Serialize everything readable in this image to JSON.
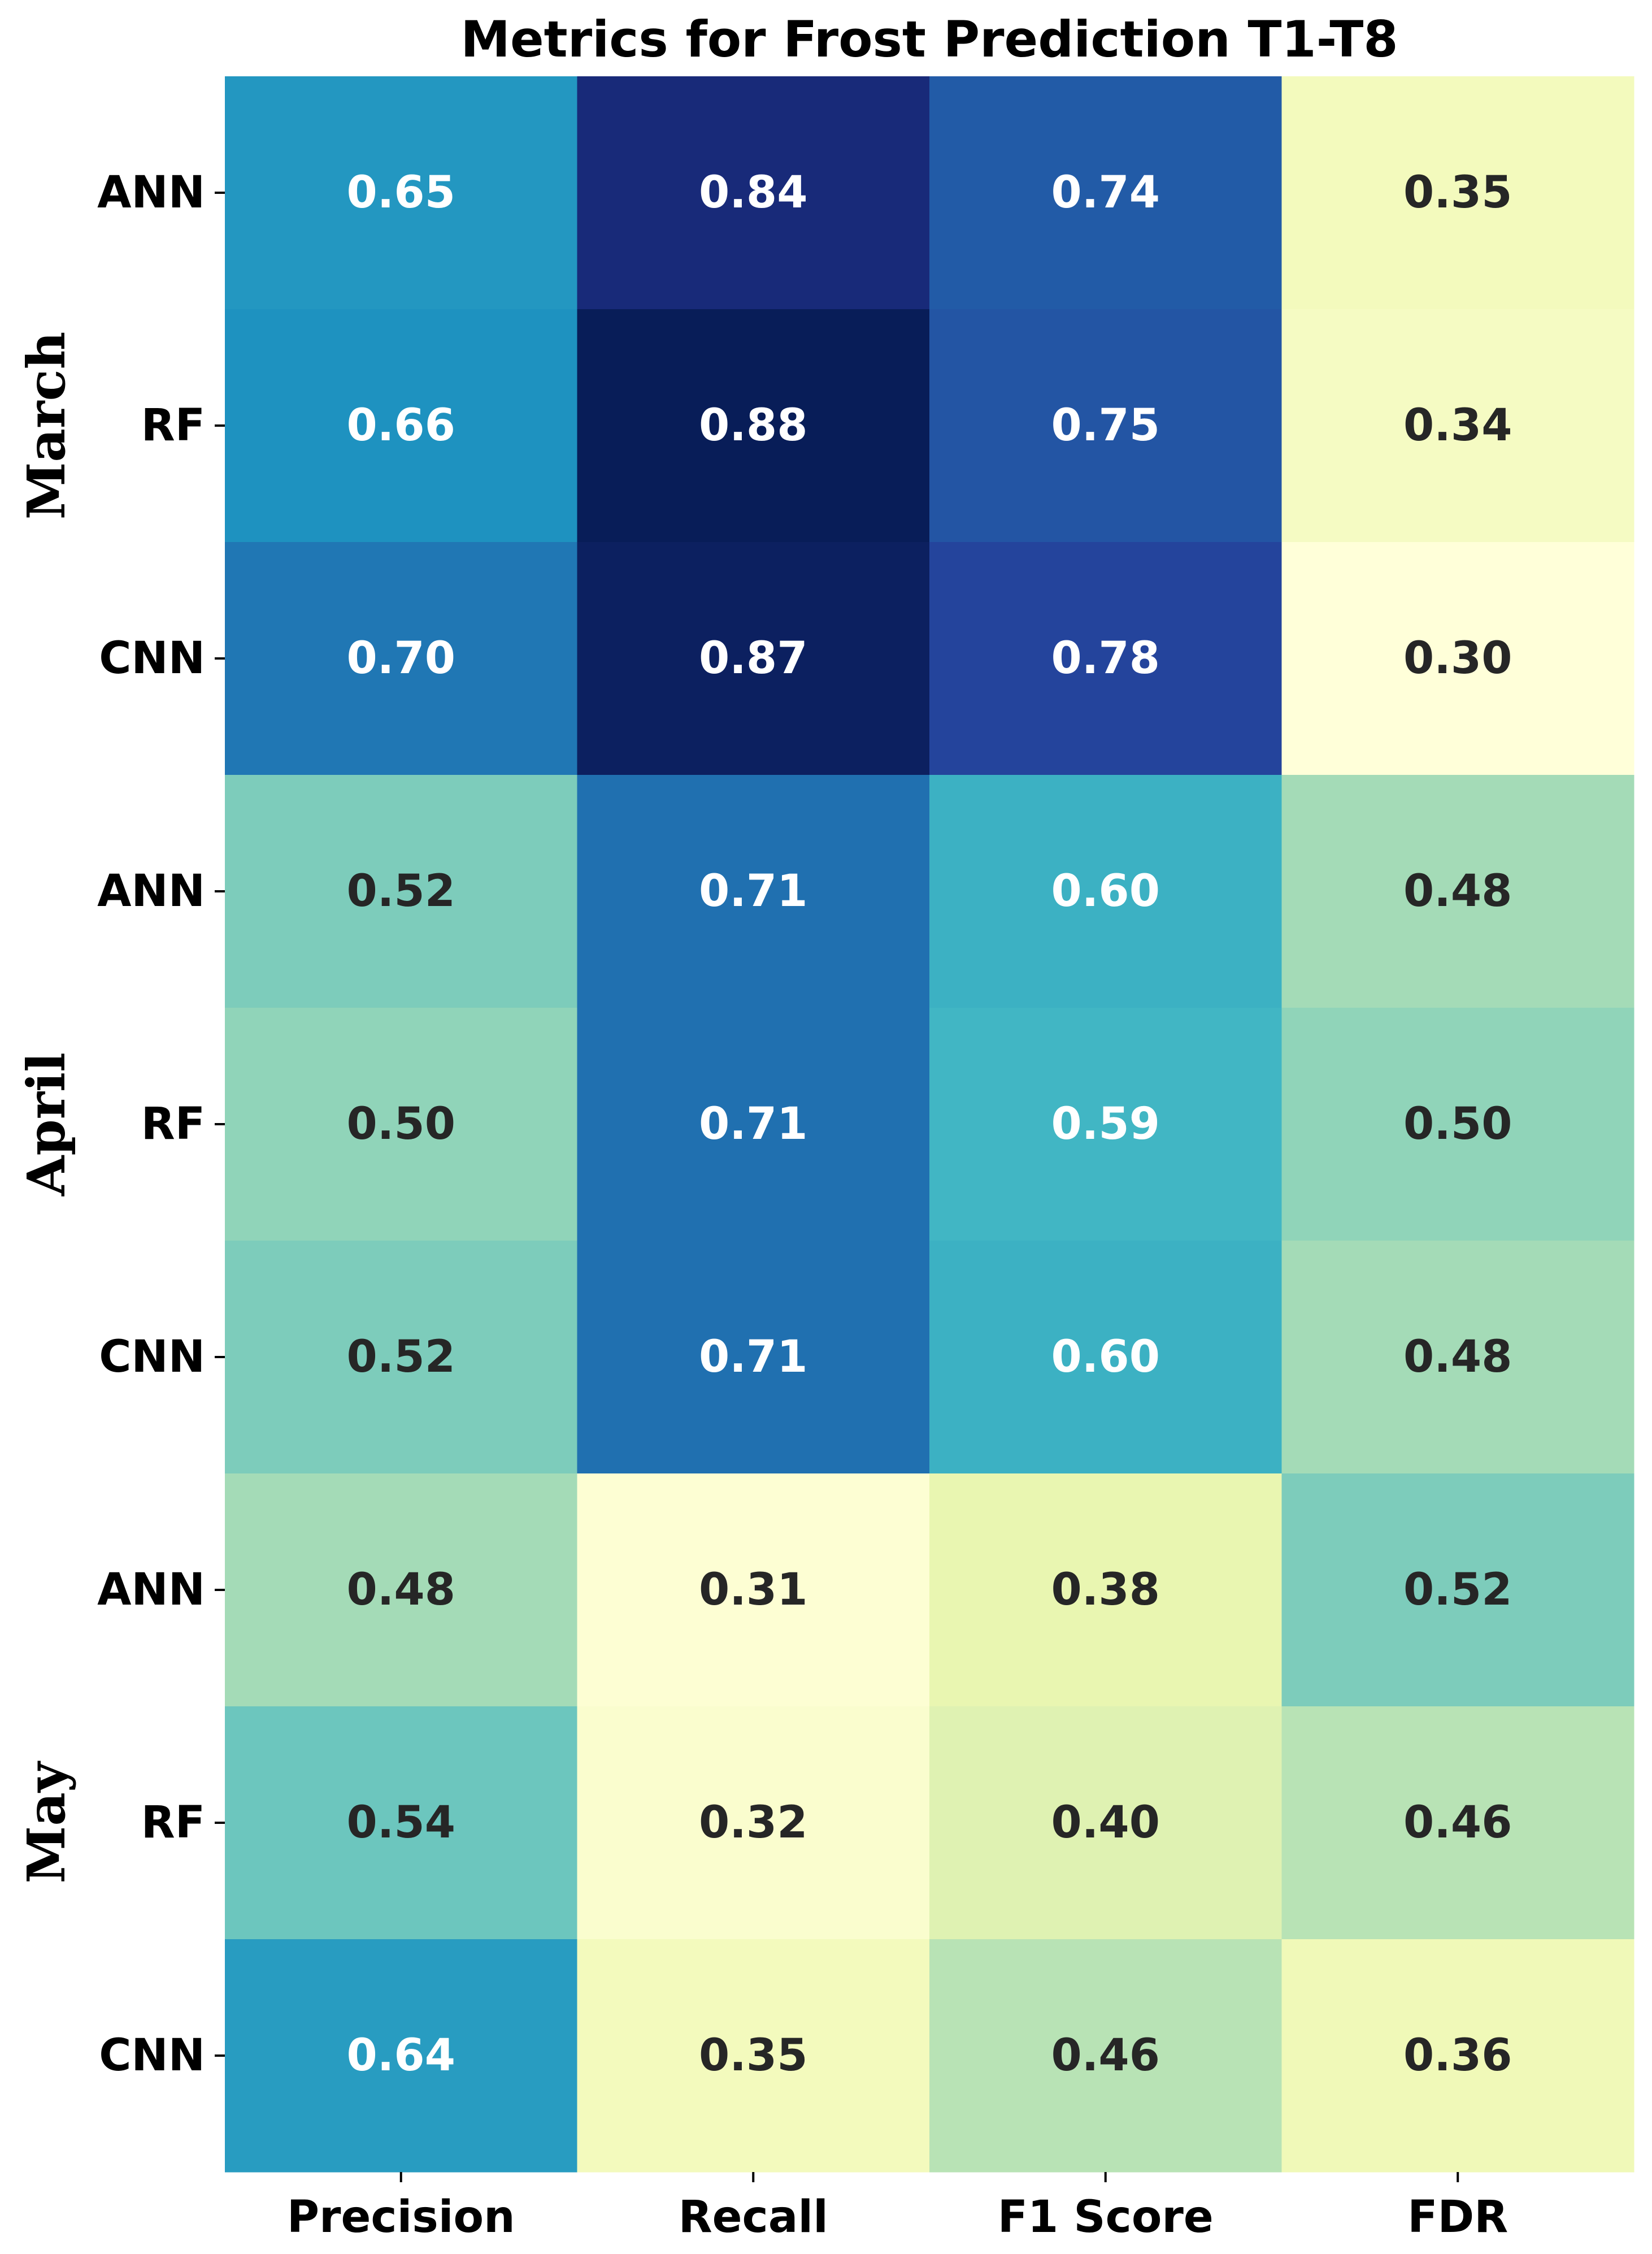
{
  "chart_data": {
    "type": "heatmap",
    "title": "Metrics for Frost Prediction T1-T8",
    "columns": [
      "Precision",
      "Recall",
      "F1 Score",
      "FDR"
    ],
    "row_labels": [
      "ANN",
      "RF",
      "CNN",
      "ANN",
      "RF",
      "CNN",
      "ANN",
      "RF",
      "CNN"
    ],
    "groups": [
      {
        "name": "March",
        "rows": [
          0,
          1,
          2
        ]
      },
      {
        "name": "April",
        "rows": [
          3,
          4,
          5
        ]
      },
      {
        "name": "May",
        "rows": [
          6,
          7,
          8
        ]
      }
    ],
    "values": [
      [
        0.65,
        0.84,
        0.74,
        0.35
      ],
      [
        0.66,
        0.88,
        0.75,
        0.34
      ],
      [
        0.7,
        0.87,
        0.78,
        0.3
      ],
      [
        0.52,
        0.71,
        0.6,
        0.48
      ],
      [
        0.5,
        0.71,
        0.59,
        0.5
      ],
      [
        0.52,
        0.71,
        0.6,
        0.48
      ],
      [
        0.48,
        0.31,
        0.38,
        0.52
      ],
      [
        0.54,
        0.32,
        0.4,
        0.46
      ],
      [
        0.64,
        0.35,
        0.46,
        0.36
      ]
    ],
    "colormap": "YlGnBu",
    "colorbar": false
  }
}
